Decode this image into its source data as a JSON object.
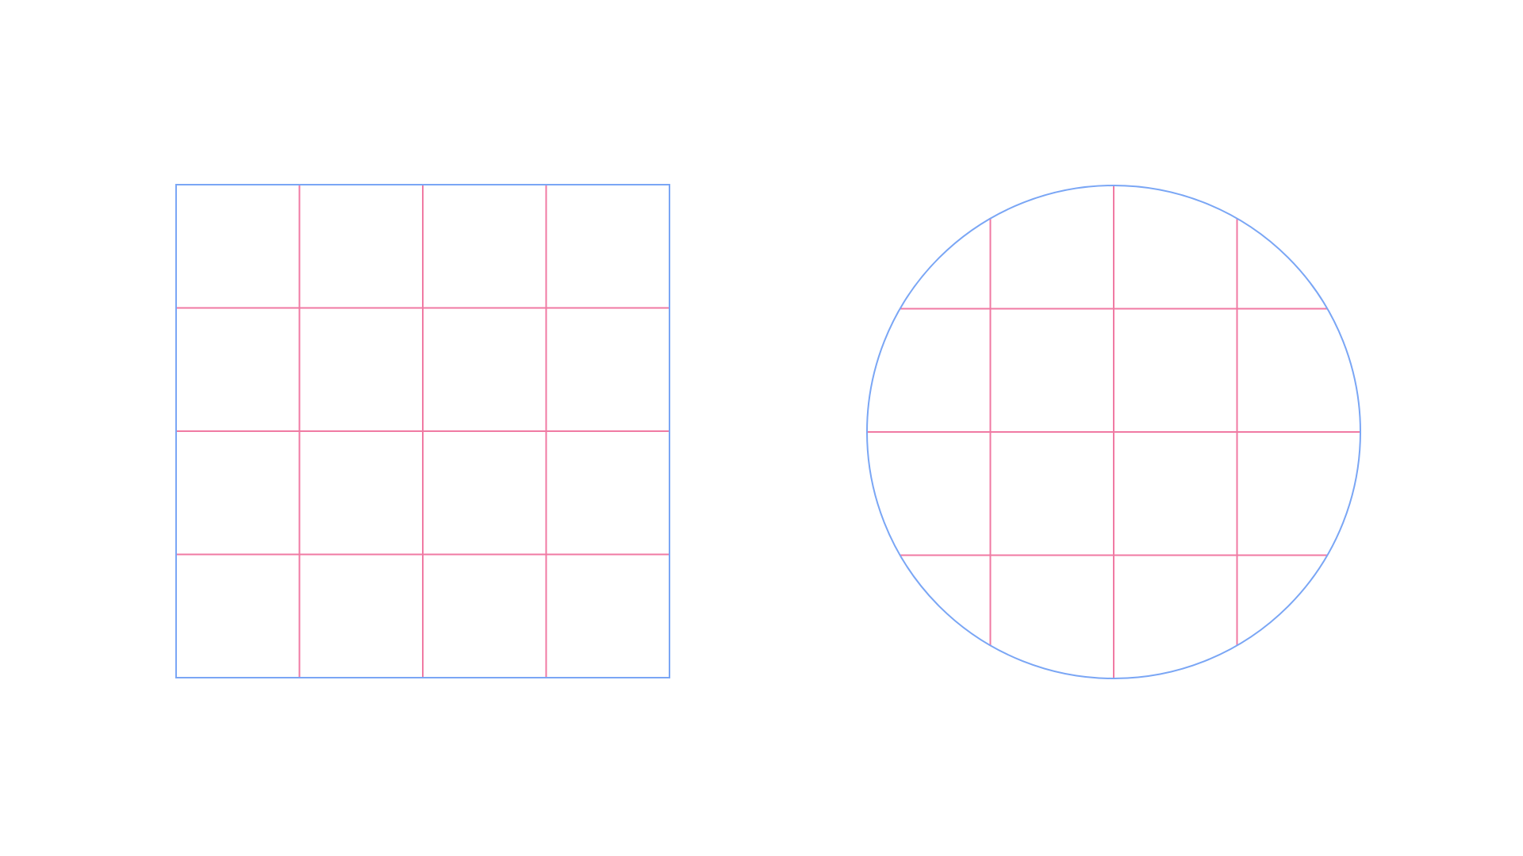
{
  "colors": {
    "background": "#ffffff",
    "outline": "#7aa6f5",
    "grid": "#f07aa3"
  },
  "shapes": [
    {
      "kind": "square",
      "columns": 4,
      "rows": 4
    },
    {
      "kind": "circle",
      "columns": 4,
      "rows": 4
    }
  ]
}
